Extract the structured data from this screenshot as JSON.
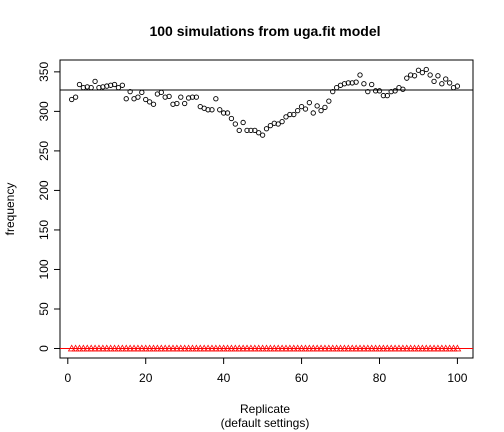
{
  "chart_data": {
    "type": "scatter",
    "title": "100 simulations from uga.fit model",
    "xlabel": "Replicate",
    "xlabel_sub": "(default settings)",
    "ylabel": "frequency",
    "xlim": [
      -2,
      104
    ],
    "ylim": [
      -12,
      365
    ],
    "xticks": [
      0,
      20,
      40,
      60,
      80,
      100
    ],
    "yticks": [
      0,
      50,
      100,
      150,
      200,
      250,
      300,
      350
    ],
    "reference_line": {
      "y": 327,
      "color": "#000000"
    },
    "zero_line": {
      "y": 0,
      "color": "#ff0000"
    },
    "series": [
      {
        "marker": "circle",
        "color": "#000000",
        "x": [
          1,
          2,
          3,
          4,
          5,
          6,
          7,
          8,
          9,
          10,
          11,
          12,
          13,
          14,
          15,
          16,
          17,
          18,
          19,
          20,
          21,
          22,
          23,
          24,
          25,
          26,
          27,
          28,
          29,
          30,
          31,
          32,
          33,
          34,
          35,
          36,
          37,
          38,
          39,
          40,
          41,
          42,
          43,
          44,
          45,
          46,
          47,
          48,
          49,
          50,
          51,
          52,
          53,
          54,
          55,
          56,
          57,
          58,
          59,
          60,
          61,
          62,
          63,
          64,
          65,
          66,
          67,
          68,
          69,
          70,
          71,
          72,
          73,
          74,
          75,
          76,
          77,
          78,
          79,
          80,
          81,
          82,
          83,
          84,
          85,
          86,
          87,
          88,
          89,
          90,
          91,
          92,
          93,
          94,
          95,
          96,
          97,
          98,
          99,
          100
        ],
        "y": [
          315,
          318,
          334,
          330,
          331,
          330,
          338,
          330,
          331,
          332,
          333,
          334,
          330,
          333,
          316,
          325,
          316,
          318,
          324,
          315,
          312,
          309,
          322,
          324,
          318,
          319,
          309,
          310,
          318,
          310,
          317,
          318,
          318,
          306,
          304,
          302,
          302,
          316,
          302,
          298,
          298,
          291,
          284,
          276,
          286,
          276,
          276,
          276,
          273,
          270,
          278,
          282,
          285,
          284,
          287,
          293,
          296,
          296,
          301,
          306,
          303,
          311,
          298,
          307,
          301,
          305,
          313,
          325,
          330,
          333,
          335,
          336,
          336,
          337,
          346,
          335,
          325,
          334,
          326,
          326,
          320,
          320,
          325,
          326,
          330,
          328,
          342,
          346,
          345,
          352,
          349,
          353,
          346,
          338,
          345,
          335,
          341,
          336,
          330,
          332
        ]
      },
      {
        "marker": "triangle",
        "color": "#ff0000",
        "x": [
          1,
          2,
          3,
          4,
          5,
          6,
          7,
          8,
          9,
          10,
          11,
          12,
          13,
          14,
          15,
          16,
          17,
          18,
          19,
          20,
          21,
          22,
          23,
          24,
          25,
          26,
          27,
          28,
          29,
          30,
          31,
          32,
          33,
          34,
          35,
          36,
          37,
          38,
          39,
          40,
          41,
          42,
          43,
          44,
          45,
          46,
          47,
          48,
          49,
          50,
          51,
          52,
          53,
          54,
          55,
          56,
          57,
          58,
          59,
          60,
          61,
          62,
          63,
          64,
          65,
          66,
          67,
          68,
          69,
          70,
          71,
          72,
          73,
          74,
          75,
          76,
          77,
          78,
          79,
          80,
          81,
          82,
          83,
          84,
          85,
          86,
          87,
          88,
          89,
          90,
          91,
          92,
          93,
          94,
          95,
          96,
          97,
          98,
          99,
          100
        ],
        "y": [
          0,
          0,
          0,
          0,
          0,
          0,
          0,
          0,
          0,
          0,
          0,
          0,
          0,
          0,
          0,
          0,
          0,
          0,
          0,
          0,
          0,
          0,
          0,
          0,
          0,
          0,
          0,
          0,
          0,
          0,
          0,
          0,
          0,
          0,
          0,
          0,
          0,
          0,
          0,
          0,
          0,
          0,
          0,
          0,
          0,
          0,
          0,
          0,
          0,
          0,
          0,
          0,
          0,
          0,
          0,
          0,
          0,
          0,
          0,
          0,
          0,
          0,
          0,
          0,
          0,
          0,
          0,
          0,
          0,
          0,
          0,
          0,
          0,
          0,
          0,
          0,
          0,
          0,
          0,
          0,
          0,
          0,
          0,
          0,
          0,
          0,
          0,
          0,
          0,
          0,
          0,
          0,
          0,
          0,
          0,
          0,
          0,
          0,
          0,
          0
        ]
      }
    ]
  }
}
